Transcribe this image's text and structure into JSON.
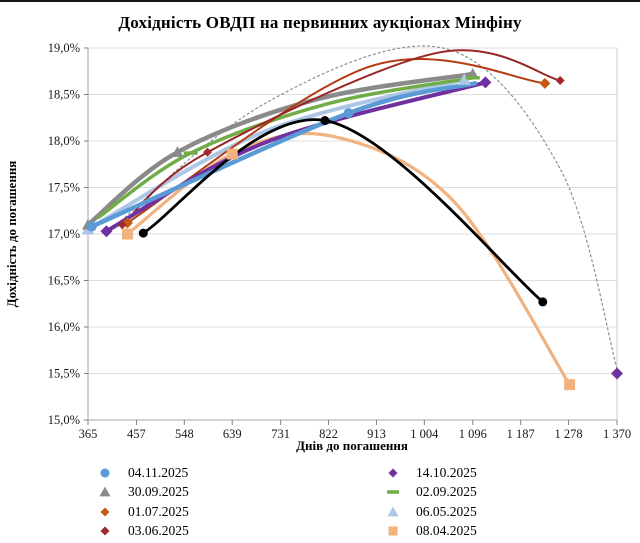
{
  "title": "Дохідність ОВДП на первинних аукціонах Мінфіну",
  "chart_data": {
    "type": "line",
    "title": "Дохідність ОВДП на первинних аукціонах Мінфіну",
    "xlabel": "Днів до погашення",
    "ylabel": "Дохідність до погашення",
    "xlim": [
      365,
      1370
    ],
    "ylim": [
      15.0,
      19.0
    ],
    "grid": "horizontal",
    "legend_position": "bottom-two-columns",
    "x_ticks": {
      "values": [
        365,
        457,
        548,
        639,
        731,
        822,
        913,
        1004,
        1096,
        1187,
        1278,
        1370
      ],
      "labels": [
        "365",
        "457",
        "548",
        "639",
        "731",
        "822",
        "913",
        "1 004",
        "1 096",
        "1 187",
        "1 278",
        "1 370"
      ]
    },
    "y_ticks": {
      "values": [
        19.0,
        18.5,
        18.0,
        17.5,
        17.0,
        16.5,
        16.0,
        15.5,
        15.0
      ],
      "labels": [
        "19,0%",
        "18,5%",
        "18,0%",
        "17,5%",
        "17,0%",
        "16,5%",
        "16,0%",
        "15,5%",
        "15,0%"
      ]
    },
    "series": [
      {
        "name": "08.04.2025",
        "color": "#F2B27E",
        "width": 3.2,
        "marker": "square",
        "marker_size": 5.5,
        "curve": [
          [
            440,
            17.0
          ],
          [
            639,
            17.86
          ],
          [
            830,
            18.05
          ],
          [
            1060,
            17.35
          ],
          [
            1280,
            15.38
          ]
        ],
        "points": [
          [
            440,
            17.0
          ],
          [
            639,
            17.86
          ],
          [
            1280,
            15.38
          ]
        ]
      },
      {
        "name": "06.05.2025",
        "color": "#AEC6E6",
        "width": 4.0,
        "marker": "triangle",
        "marker_size": 6.5,
        "curve": [
          [
            365,
            17.05
          ],
          [
            700,
            18.1
          ],
          [
            1080,
            18.66
          ]
        ],
        "points": [
          [
            365,
            17.05
          ],
          [
            1080,
            18.66
          ]
        ]
      },
      {
        "name": "14.10.2025 trend (dotted)",
        "in_legend": false,
        "color": "#8C8CA0",
        "width": 1.2,
        "dash": "2 3",
        "marker": "none",
        "marker_size": 0,
        "curve": [
          [
            400,
            17.0
          ],
          [
            700,
            18.4
          ],
          [
            1039,
            19.0
          ],
          [
            1262,
            17.7
          ],
          [
            1370,
            15.55
          ]
        ],
        "points": []
      },
      {
        "name": "30.09.2025",
        "color": "#8A8A8A",
        "width": 4.5,
        "marker": "triangle",
        "marker_size": 6,
        "curve": [
          [
            365,
            17.1
          ],
          [
            535,
            17.88
          ],
          [
            800,
            18.45
          ],
          [
            1096,
            18.72
          ]
        ],
        "points": [
          [
            365,
            17.1
          ],
          [
            535,
            17.88
          ],
          [
            1096,
            18.72
          ]
        ]
      },
      {
        "name": "02.09.2025",
        "color": "#70AD47",
        "width": 3.5,
        "marker": "dash",
        "marker_size": 7,
        "curve": [
          [
            385,
            17.18
          ],
          [
            560,
            17.87
          ],
          [
            820,
            18.4
          ],
          [
            1096,
            18.68
          ]
        ],
        "points": [
          [
            560,
            17.87
          ],
          [
            1096,
            18.68
          ]
        ]
      },
      {
        "name": "01.07.2025",
        "color": "#B43A12",
        "width": 2.0,
        "marker": "diamond",
        "marker_size": 5.5,
        "marker_color": "#C55A11",
        "curve": [
          [
            440,
            17.12
          ],
          [
            900,
            18.8
          ],
          [
            1233,
            18.62
          ]
        ],
        "points": [
          [
            440,
            17.12
          ],
          [
            1233,
            18.62
          ]
        ]
      },
      {
        "name": "03.06.2025",
        "color": "#992626",
        "width": 2.0,
        "marker": "diamond",
        "marker_size": 4.5,
        "marker_color": "#A12830",
        "curve": [
          [
            430,
            17.1
          ],
          [
            592,
            17.88
          ],
          [
            1030,
            18.95
          ],
          [
            1262,
            18.65
          ]
        ],
        "points": [
          [
            430,
            17.1
          ],
          [
            592,
            17.88
          ],
          [
            1262,
            18.65
          ]
        ]
      },
      {
        "name": "14.10.2025",
        "color": "#7030A0",
        "width": 4.0,
        "marker": "diamond",
        "marker_size": 6,
        "curve": [
          [
            400,
            17.03
          ],
          [
            700,
            17.98
          ],
          [
            1120,
            18.63
          ]
        ],
        "points": [
          [
            400,
            17.03
          ],
          [
            1120,
            18.63
          ],
          [
            1370,
            15.5
          ]
        ]
      },
      {
        "name": "04.11.2025",
        "color": "#5B9BD5",
        "width": 4.5,
        "marker": "circle",
        "marker_size": 5,
        "curve": [
          [
            372,
            17.08
          ],
          [
            860,
            18.3
          ],
          [
            1100,
            18.62
          ]
        ],
        "points": [
          [
            372,
            17.08
          ],
          [
            860,
            18.3
          ]
        ]
      },
      {
        "name": "unlabeled-black",
        "in_legend": false,
        "color": "#000000",
        "width": 2.8,
        "marker": "circle",
        "marker_size": 4.5,
        "curve": [
          [
            470,
            17.01
          ],
          [
            815,
            18.22
          ],
          [
            1229,
            16.27
          ]
        ],
        "points": [
          [
            470,
            17.01
          ],
          [
            815,
            18.22
          ],
          [
            1229,
            16.27
          ]
        ]
      }
    ],
    "legend": {
      "columns": [
        [
          "04.11.2025",
          "30.09.2025",
          "01.07.2025",
          "03.06.2025"
        ],
        [
          "14.10.2025",
          "02.09.2025",
          "06.05.2025",
          "08.04.2025"
        ]
      ]
    }
  }
}
